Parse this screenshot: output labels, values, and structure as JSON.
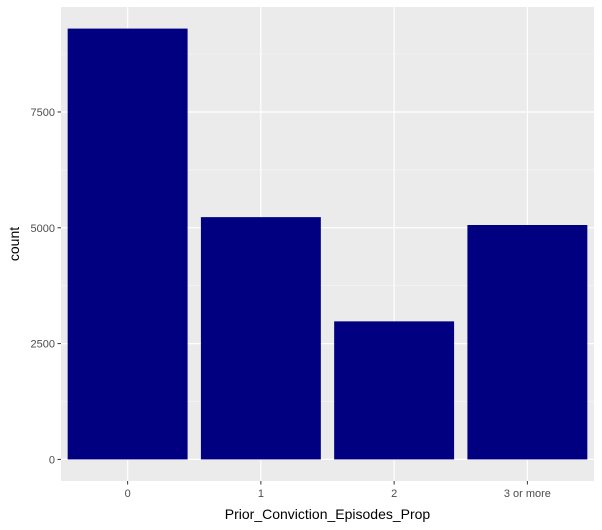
{
  "chart_data": {
    "type": "bar",
    "categories": [
      "0",
      "1",
      "2",
      "3 or more"
    ],
    "values": [
      9300,
      5230,
      2980,
      5060
    ],
    "xlabel": "Prior_Conviction_Episodes_Prop",
    "ylabel": "count",
    "ylim": [
      -466,
      9766
    ],
    "yticks": [
      0,
      2500,
      5000,
      7500
    ],
    "ytick_labels": [
      "0",
      "2500",
      "5000",
      "7500"
    ],
    "grid": true,
    "legend": "none",
    "colors": {
      "bar": "#000080",
      "panel_background": "#EBEBEB",
      "grid_major": "#FFFFFF",
      "grid_minor": "#F5F5F5"
    }
  }
}
